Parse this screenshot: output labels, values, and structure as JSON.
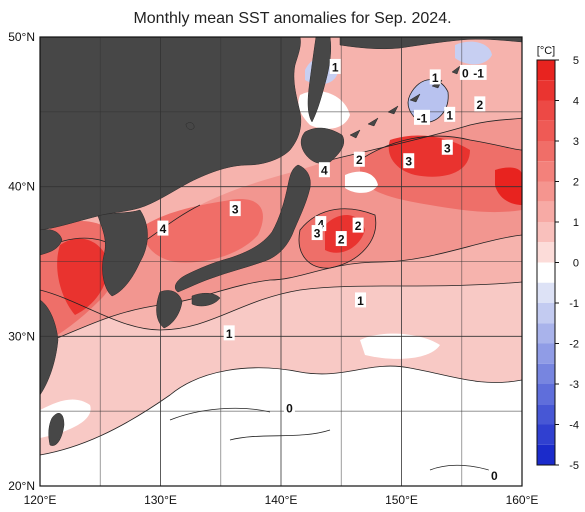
{
  "title": "Monthly mean SST anomalies for Sep. 2024.",
  "map": {
    "lon_range": [
      120,
      160
    ],
    "lat_range": [
      20,
      50
    ],
    "lon_ticks": [
      {
        "value": 120,
        "label": "120°E"
      },
      {
        "value": 130,
        "label": "130°E"
      },
      {
        "value": 140,
        "label": "140°E"
      },
      {
        "value": 150,
        "label": "150°E"
      },
      {
        "value": 160,
        "label": "160°E"
      }
    ],
    "lat_ticks": [
      {
        "value": 50,
        "label": "50°N"
      },
      {
        "value": 40,
        "label": "40°N"
      },
      {
        "value": 30,
        "label": "30°N"
      },
      {
        "value": 20,
        "label": "20°N"
      }
    ],
    "grid": true,
    "land_color": "#474747",
    "ocean_base_color": "#f6c7c2"
  },
  "contour_labels": [
    {
      "text": "1",
      "lon": 144.5,
      "lat": 48.0
    },
    {
      "text": "1",
      "lon": 152.8,
      "lat": 47.3
    },
    {
      "text": "1",
      "lon": 154.0,
      "lat": 44.8
    },
    {
      "text": "-1",
      "lon": 151.7,
      "lat": 44.6
    },
    {
      "text": "2",
      "lon": 156.5,
      "lat": 45.5
    },
    {
      "text": "0",
      "lon": 155.3,
      "lat": 47.6
    },
    {
      "text": "-1",
      "lon": 156.4,
      "lat": 47.6
    },
    {
      "text": "3",
      "lon": 153.8,
      "lat": 42.6
    },
    {
      "text": "3",
      "lon": 150.6,
      "lat": 41.7
    },
    {
      "text": "2",
      "lon": 146.5,
      "lat": 41.8
    },
    {
      "text": "4",
      "lon": 143.6,
      "lat": 41.1
    },
    {
      "text": "3",
      "lon": 136.2,
      "lat": 38.5
    },
    {
      "text": "4",
      "lon": 130.2,
      "lat": 37.2
    },
    {
      "text": "4",
      "lon": 143.3,
      "lat": 37.5
    },
    {
      "text": "3",
      "lon": 143.0,
      "lat": 36.9
    },
    {
      "text": "2",
      "lon": 146.4,
      "lat": 37.4
    },
    {
      "text": "2",
      "lon": 145.0,
      "lat": 36.5
    },
    {
      "text": "1",
      "lon": 146.6,
      "lat": 32.4
    },
    {
      "text": "1",
      "lon": 135.7,
      "lat": 30.2
    },
    {
      "text": "0",
      "lon": 140.7,
      "lat": 25.2
    },
    {
      "text": "0",
      "lon": 157.7,
      "lat": 20.7
    }
  ],
  "colorbar": {
    "unit": "[°C]",
    "ticks": [
      "5",
      "4",
      "3",
      "2",
      "1",
      "0",
      "-1",
      "-2",
      "-3",
      "-4",
      "-5"
    ],
    "min": -5,
    "max": 5,
    "steps": [
      {
        "from": 4.5,
        "to": 5.0,
        "color": "#e8231f"
      },
      {
        "from": 4.0,
        "to": 4.5,
        "color": "#ea3430"
      },
      {
        "from": 3.5,
        "to": 4.0,
        "color": "#ed4945"
      },
      {
        "from": 3.0,
        "to": 3.5,
        "color": "#ef5a55"
      },
      {
        "from": 2.5,
        "to": 3.0,
        "color": "#f06e68"
      },
      {
        "from": 2.0,
        "to": 2.5,
        "color": "#f3817b"
      },
      {
        "from": 1.5,
        "to": 2.0,
        "color": "#f5958f"
      },
      {
        "from": 1.0,
        "to": 1.5,
        "color": "#f7aaa5"
      },
      {
        "from": 0.5,
        "to": 1.0,
        "color": "#f9c0bc"
      },
      {
        "from": 0.0,
        "to": 0.5,
        "color": "#fcdcd9"
      },
      {
        "from": -0.5,
        "to": 0.0,
        "color": "#ffffff"
      },
      {
        "from": -1.0,
        "to": -0.5,
        "color": "#dde2f6"
      },
      {
        "from": -1.5,
        "to": -1.0,
        "color": "#c3cbf1"
      },
      {
        "from": -2.0,
        "to": -1.5,
        "color": "#a9b3eb"
      },
      {
        "from": -2.5,
        "to": -2.0,
        "color": "#909ce6"
      },
      {
        "from": -3.0,
        "to": -2.5,
        "color": "#7785e0"
      },
      {
        "from": -3.5,
        "to": -3.0,
        "color": "#5f6edb"
      },
      {
        "from": -4.0,
        "to": -3.5,
        "color": "#4757d5"
      },
      {
        "from": -4.5,
        "to": -4.0,
        "color": "#3040d0"
      },
      {
        "from": -5.0,
        "to": -4.5,
        "color": "#1b2bcb"
      }
    ]
  }
}
